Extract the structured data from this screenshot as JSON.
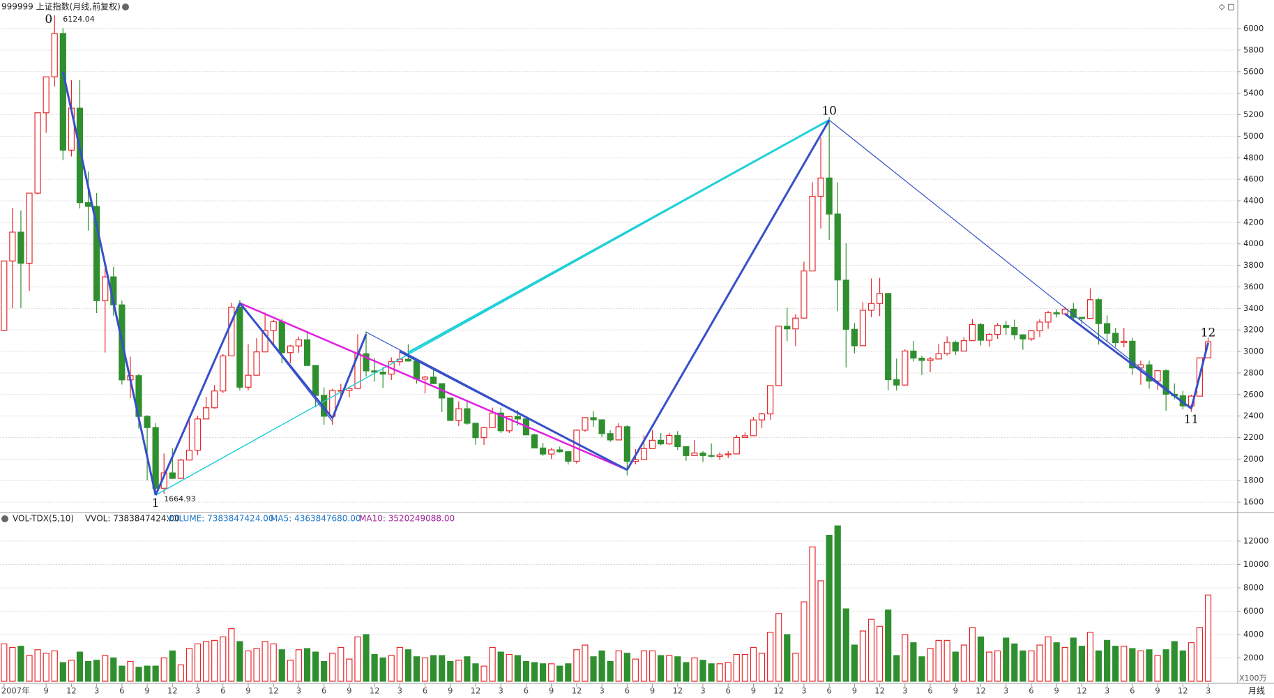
{
  "chart_data": {
    "type": "candlestick",
    "title": "999999 上证指数(月线,前复权)",
    "period": "月线",
    "up_color": "#e8262a",
    "down_color": "#2f8f2f",
    "ylim": [
      1510,
      6130
    ],
    "yticks": [
      1600,
      1800,
      2000,
      2200,
      2400,
      2600,
      2800,
      3000,
      3200,
      3400,
      3600,
      3800,
      4000,
      4200,
      4400,
      4600,
      4800,
      5000,
      5200,
      5400,
      5600,
      5800,
      6000
    ],
    "grid": true,
    "categories": [
      "2007年",
      null,
      null,
      null,
      null,
      "9",
      null,
      null,
      "12",
      null,
      null,
      "3",
      null,
      null,
      "6",
      null,
      null,
      "9",
      null,
      null,
      "12",
      null,
      null,
      "3",
      null,
      null,
      "6",
      null,
      null,
      "9",
      null,
      null,
      "12",
      null,
      null,
      "3",
      null,
      null,
      "6",
      null,
      null,
      "9",
      null,
      null,
      "12",
      null,
      null,
      "3",
      null,
      null,
      "6",
      null,
      null,
      "9",
      null,
      null,
      "12",
      null,
      null,
      "3",
      null,
      null,
      "6",
      null,
      null,
      "9",
      null,
      null,
      "12",
      null,
      null,
      "3",
      null,
      null,
      "6",
      null,
      null,
      "9",
      null,
      null,
      "12",
      null,
      null,
      "3",
      null,
      null,
      "6",
      null,
      null,
      "9",
      null,
      null,
      "12",
      null,
      null,
      "3",
      null,
      null,
      "6",
      null,
      null,
      "9",
      null,
      null,
      "12",
      null,
      null,
      "3",
      null,
      null,
      "6",
      null,
      null,
      "9",
      null,
      null,
      "12",
      null,
      null,
      "3",
      null,
      null,
      "6",
      null,
      null,
      "9",
      null,
      null,
      "12",
      null,
      null,
      "3",
      null,
      null,
      "6",
      null,
      null,
      "9",
      null,
      null,
      "12",
      null,
      null,
      "3"
    ],
    "candles": [
      [
        3196,
        3841,
        3196,
        3841
      ],
      [
        3841,
        4335,
        3404,
        4109
      ],
      [
        4109,
        4311,
        3404,
        3820
      ],
      [
        3820,
        4471,
        3563,
        4471
      ],
      [
        4471,
        5218,
        4460,
        5218
      ],
      [
        5218,
        5552,
        5032,
        5552
      ],
      [
        5552,
        6124,
        5462,
        5955
      ],
      [
        5955,
        6005,
        4778,
        4871
      ],
      [
        4871,
        5522,
        4812,
        5261
      ],
      [
        5261,
        5522,
        4330,
        4383
      ],
      [
        4383,
        4672,
        4123,
        4348
      ],
      [
        4348,
        4472,
        3357,
        3472
      ],
      [
        3472,
        3786,
        2990,
        3693
      ],
      [
        3693,
        3786,
        3333,
        3433
      ],
      [
        3433,
        3473,
        2693,
        2736
      ],
      [
        2736,
        2952,
        2566,
        2775
      ],
      [
        2775,
        2793,
        2284,
        2397
      ],
      [
        2397,
        2409,
        1802,
        2293
      ],
      [
        2293,
        2333,
        1665,
        1729
      ],
      [
        1729,
        2051,
        1678,
        1872
      ],
      [
        1872,
        2100,
        1814,
        1821
      ],
      [
        1821,
        2001,
        1814,
        1991
      ],
      [
        1991,
        2402,
        1988,
        2082
      ],
      [
        2082,
        2402,
        2037,
        2373
      ],
      [
        2373,
        2579,
        2373,
        2477
      ],
      [
        2477,
        2688,
        2468,
        2633
      ],
      [
        2633,
        2975,
        2614,
        2959
      ],
      [
        2959,
        3454,
        2959,
        3412
      ],
      [
        3412,
        3478,
        2639,
        2668
      ],
      [
        2668,
        3068,
        2639,
        2779
      ],
      [
        2779,
        3123,
        2779,
        2996
      ],
      [
        2996,
        3361,
        2996,
        3195
      ],
      [
        3195,
        3295,
        3039,
        3277
      ],
      [
        3277,
        3306,
        2890,
        2989
      ],
      [
        2989,
        3060,
        2890,
        3051
      ],
      [
        3051,
        3138,
        2988,
        3109
      ],
      [
        3109,
        3181,
        2863,
        2870
      ],
      [
        2870,
        2870,
        2481,
        2592
      ],
      [
        2592,
        2666,
        2320,
        2398
      ],
      [
        2398,
        2655,
        2319,
        2638
      ],
      [
        2638,
        2700,
        2568,
        2638
      ],
      [
        2638,
        2668,
        2573,
        2656
      ],
      [
        2656,
        3160,
        2656,
        2979
      ],
      [
        2979,
        3186,
        2768,
        2820
      ],
      [
        2820,
        2939,
        2721,
        2808
      ],
      [
        2808,
        2856,
        2661,
        2790
      ],
      [
        2790,
        2945,
        2735,
        2905
      ],
      [
        2905,
        3012,
        2868,
        2928
      ],
      [
        2928,
        3067,
        2906,
        2911
      ],
      [
        2911,
        2917,
        2701,
        2743
      ],
      [
        2743,
        2774,
        2610,
        2762
      ],
      [
        2762,
        2826,
        2700,
        2701
      ],
      [
        2701,
        2701,
        2437,
        2567
      ],
      [
        2567,
        2568,
        2353,
        2359
      ],
      [
        2359,
        2536,
        2307,
        2468
      ],
      [
        2468,
        2536,
        2319,
        2333
      ],
      [
        2333,
        2333,
        2134,
        2199
      ],
      [
        2199,
        2300,
        2132,
        2292
      ],
      [
        2292,
        2478,
        2292,
        2428
      ],
      [
        2428,
        2478,
        2242,
        2263
      ],
      [
        2263,
        2396,
        2242,
        2396
      ],
      [
        2396,
        2453,
        2313,
        2373
      ],
      [
        2373,
        2373,
        2225,
        2225
      ],
      [
        2225,
        2236,
        2100,
        2103
      ],
      [
        2103,
        2152,
        2030,
        2047
      ],
      [
        2047,
        2104,
        1999,
        2086
      ],
      [
        2086,
        2117,
        2058,
        2069
      ],
      [
        2069,
        2069,
        1949,
        1980
      ],
      [
        1980,
        2276,
        1959,
        2269
      ],
      [
        2269,
        2390,
        2254,
        2385
      ],
      [
        2385,
        2444,
        2300,
        2365
      ],
      [
        2365,
        2366,
        2205,
        2237
      ],
      [
        2237,
        2267,
        2161,
        2178
      ],
      [
        2178,
        2334,
        2178,
        2301
      ],
      [
        2301,
        2314,
        1849,
        1979
      ],
      [
        1979,
        2093,
        1951,
        1994
      ],
      [
        1994,
        2222,
        1994,
        2098
      ],
      [
        2098,
        2270,
        2098,
        2175
      ],
      [
        2175,
        2242,
        2127,
        2141
      ],
      [
        2141,
        2245,
        2132,
        2220
      ],
      [
        2220,
        2260,
        2083,
        2116
      ],
      [
        2116,
        2120,
        1985,
        2033
      ],
      [
        2033,
        2177,
        2033,
        2056
      ],
      [
        2056,
        2075,
        1974,
        2033
      ],
      [
        2033,
        2146,
        2014,
        2026
      ],
      [
        2026,
        2062,
        1991,
        2039
      ],
      [
        2039,
        2074,
        2010,
        2048
      ],
      [
        2048,
        2224,
        2048,
        2201
      ],
      [
        2201,
        2248,
        2195,
        2217
      ],
      [
        2217,
        2391,
        2217,
        2364
      ],
      [
        2364,
        2430,
        2290,
        2420
      ],
      [
        2420,
        2683,
        2366,
        2683
      ],
      [
        2683,
        3239,
        2683,
        3235
      ],
      [
        3235,
        3406,
        3095,
        3210
      ],
      [
        3210,
        3347,
        3049,
        3310
      ],
      [
        3310,
        3835,
        3310,
        3748
      ],
      [
        3748,
        4572,
        3748,
        4442
      ],
      [
        4442,
        4986,
        4143,
        4612
      ],
      [
        4612,
        5178,
        4037,
        4277
      ],
      [
        4277,
        4572,
        3374,
        3664
      ],
      [
        3664,
        4006,
        2851,
        3206
      ],
      [
        3206,
        3265,
        2983,
        3053
      ],
      [
        3053,
        3459,
        3053,
        3383
      ],
      [
        3383,
        3678,
        3318,
        3446
      ],
      [
        3446,
        3684,
        3328,
        3539
      ],
      [
        3539,
        3539,
        2639,
        2738
      ],
      [
        2738,
        2934,
        2638,
        2688
      ],
      [
        2688,
        3019,
        2688,
        3004
      ],
      [
        3004,
        3097,
        2907,
        2938
      ],
      [
        2938,
        2962,
        2781,
        2917
      ],
      [
        2917,
        2949,
        2808,
        2930
      ],
      [
        2930,
        3071,
        2929,
        2979
      ],
      [
        2979,
        3140,
        2962,
        3085
      ],
      [
        3085,
        3101,
        2968,
        3004
      ],
      [
        3004,
        3134,
        3004,
        3100
      ],
      [
        3100,
        3301,
        3100,
        3250
      ],
      [
        3250,
        3265,
        3056,
        3104
      ],
      [
        3104,
        3174,
        3044,
        3159
      ],
      [
        3159,
        3265,
        3117,
        3242
      ],
      [
        3242,
        3284,
        3155,
        3223
      ],
      [
        3223,
        3295,
        3111,
        3155
      ],
      [
        3155,
        3156,
        3016,
        3117
      ],
      [
        3117,
        3199,
        3099,
        3192
      ],
      [
        3192,
        3301,
        3135,
        3273
      ],
      [
        3273,
        3377,
        3211,
        3361
      ],
      [
        3361,
        3391,
        3317,
        3349
      ],
      [
        3349,
        3418,
        3340,
        3393
      ],
      [
        3393,
        3450,
        3302,
        3317
      ],
      [
        3317,
        3321,
        3254,
        3307
      ],
      [
        3307,
        3587,
        3307,
        3481
      ],
      [
        3481,
        3495,
        3063,
        3259
      ],
      [
        3259,
        3334,
        3092,
        3169
      ],
      [
        3169,
        3220,
        3041,
        3082
      ],
      [
        3082,
        3219,
        3041,
        3095
      ],
      [
        3095,
        3128,
        2782,
        2847
      ],
      [
        2847,
        2916,
        2691,
        2876
      ],
      [
        2876,
        2915,
        2653,
        2725
      ],
      [
        2725,
        2827,
        2644,
        2821
      ],
      [
        2821,
        2835,
        2449,
        2603
      ],
      [
        2603,
        2703,
        2556,
        2588
      ],
      [
        2588,
        2636,
        2462,
        2494
      ],
      [
        2494,
        2597,
        2440,
        2585
      ],
      [
        2585,
        2943,
        2585,
        2941
      ],
      [
        2941,
        3129,
        2941,
        3090
      ]
    ],
    "extremes": [
      {
        "index": 6,
        "value": 6124.04
      },
      {
        "index": 18,
        "value": 1664.93
      }
    ],
    "wave_labels": [
      {
        "text": "0",
        "at": [
          5.3,
          6083
        ]
      },
      {
        "text": "1",
        "at": [
          18,
          1585
        ]
      },
      {
        "text": "10",
        "at": [
          98,
          5230
        ]
      },
      {
        "text": "11",
        "at": [
          141,
          2362
        ]
      },
      {
        "text": "12",
        "at": [
          143,
          3170
        ]
      }
    ],
    "waves": [
      {
        "color": "#20d0d8",
        "width": 1.5,
        "points": [
          [
            18,
            1665
          ],
          [
            98,
            5150
          ]
        ]
      },
      {
        "color": "#20d0d8",
        "width": 3,
        "points": [
          [
            48,
            2990
          ],
          [
            98,
            5150
          ]
        ]
      },
      {
        "color": "#e020e0",
        "width": 2.5,
        "points": [
          [
            28,
            3450
          ],
          [
            74,
            1900
          ]
        ]
      },
      {
        "color": "#3650c8",
        "width": 3,
        "points": [
          [
            7,
            5600
          ],
          [
            18,
            1665
          ]
        ]
      },
      {
        "color": "#3650c8",
        "width": 3,
        "points": [
          [
            18,
            1665
          ],
          [
            28,
            3450
          ]
        ]
      },
      {
        "color": "#3650c8",
        "width": 3,
        "points": [
          [
            28,
            3450
          ],
          [
            39,
            2380
          ]
        ]
      },
      {
        "color": "#3650c8",
        "width": 1.2,
        "points": [
          [
            28,
            3450
          ],
          [
            39,
            2350
          ]
        ]
      },
      {
        "color": "#3650c8",
        "width": 3,
        "points": [
          [
            39,
            2380
          ],
          [
            43,
            3160
          ]
        ]
      },
      {
        "color": "#3650c8",
        "width": 1.2,
        "points": [
          [
            43,
            3180
          ],
          [
            74,
            1900
          ]
        ]
      },
      {
        "color": "#3650c8",
        "width": 3,
        "points": [
          [
            47,
            3000
          ],
          [
            74,
            1900
          ]
        ]
      },
      {
        "color": "#3650c8",
        "width": 3,
        "points": [
          [
            74,
            1900
          ],
          [
            98,
            5150
          ]
        ]
      },
      {
        "color": "#3650c8",
        "width": 1.2,
        "points": [
          [
            98,
            5150
          ],
          [
            141,
            2470
          ]
        ]
      },
      {
        "color": "#3650c8",
        "width": 3,
        "points": [
          [
            126,
            3350
          ],
          [
            141,
            2470
          ]
        ]
      },
      {
        "color": "#3650c8",
        "width": 3,
        "points": [
          [
            141,
            2470
          ],
          [
            143,
            3080
          ]
        ]
      }
    ],
    "volume": {
      "label": "VOL-TDX(5,10)",
      "vvol": "VVOL: 7383847424.00",
      "volume_text": "VOLUME: 7383847424.00",
      "ma5_text": "MA5: 4363847680.00",
      "ma10_text": "MA10: 3520249088.00",
      "unit": "X100万",
      "ylim": [
        0,
        13550
      ],
      "yticks": [
        2000,
        4000,
        6000,
        8000,
        10000,
        12000
      ],
      "values": [
        3200,
        2900,
        3000,
        2200,
        2700,
        2400,
        2600,
        1600,
        1800,
        2500,
        1700,
        1800,
        2200,
        2000,
        1300,
        1700,
        1200,
        1300,
        1300,
        2000,
        2600,
        1400,
        2800,
        3200,
        3400,
        3500,
        3800,
        4500,
        3400,
        2600,
        2800,
        3400,
        3200,
        2700,
        1800,
        2700,
        2800,
        2500,
        1700,
        2400,
        2900,
        1900,
        3800,
        4000,
        2300,
        2000,
        2200,
        2900,
        2700,
        2100,
        2000,
        2200,
        2200,
        1700,
        1800,
        2100,
        1500,
        1300,
        2900,
        2500,
        2300,
        2200,
        1700,
        1600,
        1500,
        1500,
        1300,
        1500,
        2700,
        3100,
        2100,
        2600,
        1700,
        2600,
        2400,
        1900,
        2600,
        2600,
        2200,
        2200,
        2100,
        1600,
        2000,
        1800,
        1500,
        1500,
        1600,
        2300,
        2300,
        2900,
        2400,
        4200,
        5800,
        4000,
        2400,
        6800,
        11500,
        8600,
        12500,
        13300,
        6200,
        3100,
        4300,
        5300,
        4700,
        6100,
        2200,
        4000,
        3300,
        2100,
        2800,
        3500,
        3500,
        2500,
        3100,
        4600,
        3800,
        2500,
        2600,
        3700,
        3200,
        2600,
        2600,
        3100,
        3800,
        3300,
        2900,
        3700,
        3000,
        4200,
        2600,
        3500,
        3000,
        3000,
        2800,
        2600,
        2700,
        2200,
        2700,
        3400,
        2600,
        3300,
        4600,
        7384
      ]
    }
  }
}
